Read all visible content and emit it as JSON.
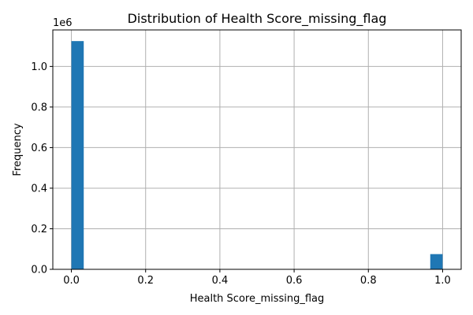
{
  "chart_data": {
    "type": "bar",
    "title": "Distribution of Health Score_missing_flag",
    "xlabel": "Health Score_missing_flag",
    "ylabel": "Frequency",
    "y_offset_label": "1e6",
    "grid": true,
    "xlim": [
      -0.05,
      1.05
    ],
    "ylim": [
      0,
      1.18
    ],
    "bin_width": 0.0333,
    "bars": [
      {
        "x": 0.0,
        "value": 1.125
      },
      {
        "x": 0.9667,
        "value": 0.075
      }
    ],
    "xticks": [
      0.0,
      0.2,
      0.4,
      0.6,
      0.8,
      1.0
    ],
    "xtick_labels": [
      "0.0",
      "0.2",
      "0.4",
      "0.6",
      "0.8",
      "1.0"
    ],
    "yticks": [
      0.0,
      0.2,
      0.4,
      0.6,
      0.8,
      1.0
    ],
    "ytick_labels": [
      "0.0",
      "0.2",
      "0.4",
      "0.6",
      "0.8",
      "1.0"
    ],
    "bar_color": "#1f77b4"
  }
}
